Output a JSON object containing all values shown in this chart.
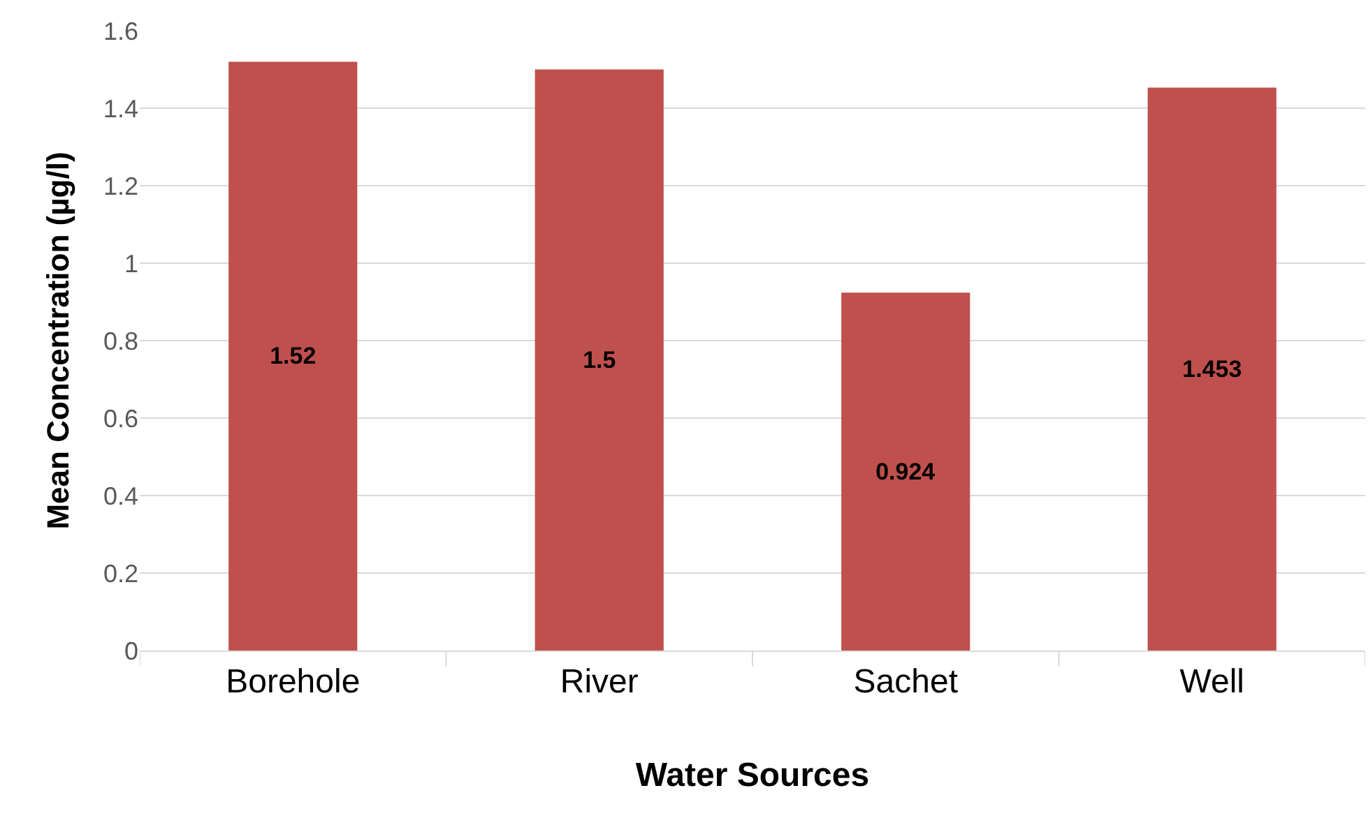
{
  "chart_data": {
    "type": "bar",
    "xlabel": "Water Sources",
    "ylabel": "Mean Concentration (µg/l)",
    "categories": [
      "Borehole",
      "River",
      "Sachet",
      "Well"
    ],
    "values": [
      1.52,
      1.5,
      0.924,
      1.453
    ],
    "color": "#c0504d",
    "ylim": [
      0,
      1.6
    ],
    "yticks": [
      0,
      0.2,
      0.4,
      0.6,
      0.8,
      1,
      1.2,
      1.4,
      1.6
    ],
    "grid": "y",
    "data_labels": true,
    "legend": false
  }
}
